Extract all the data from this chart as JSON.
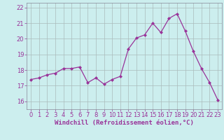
{
  "x": [
    0,
    1,
    2,
    3,
    4,
    5,
    6,
    7,
    8,
    9,
    10,
    11,
    12,
    13,
    14,
    15,
    16,
    17,
    18,
    19,
    20,
    21,
    22,
    23
  ],
  "y": [
    17.4,
    17.5,
    17.7,
    17.8,
    18.1,
    18.1,
    18.2,
    17.2,
    17.5,
    17.1,
    17.4,
    17.6,
    19.35,
    20.05,
    20.25,
    21.0,
    20.4,
    21.3,
    21.6,
    20.5,
    19.2,
    18.1,
    17.2,
    16.1
  ],
  "line_color": "#993399",
  "marker_color": "#993399",
  "bg_color": "#cceeee",
  "grid_color": "#aabbbb",
  "xlabel": "Windchill (Refroidissement éolien,°C)",
  "xlim": [
    -0.5,
    23.5
  ],
  "ylim": [
    15.5,
    22.3
  ],
  "yticks": [
    16,
    17,
    18,
    19,
    20,
    21,
    22
  ],
  "xticks": [
    0,
    1,
    2,
    3,
    4,
    5,
    6,
    7,
    8,
    9,
    10,
    11,
    12,
    13,
    14,
    15,
    16,
    17,
    18,
    19,
    20,
    21,
    22,
    23
  ],
  "tick_color": "#993399",
  "label_fontsize": 6.5,
  "tick_fontsize": 6.0
}
